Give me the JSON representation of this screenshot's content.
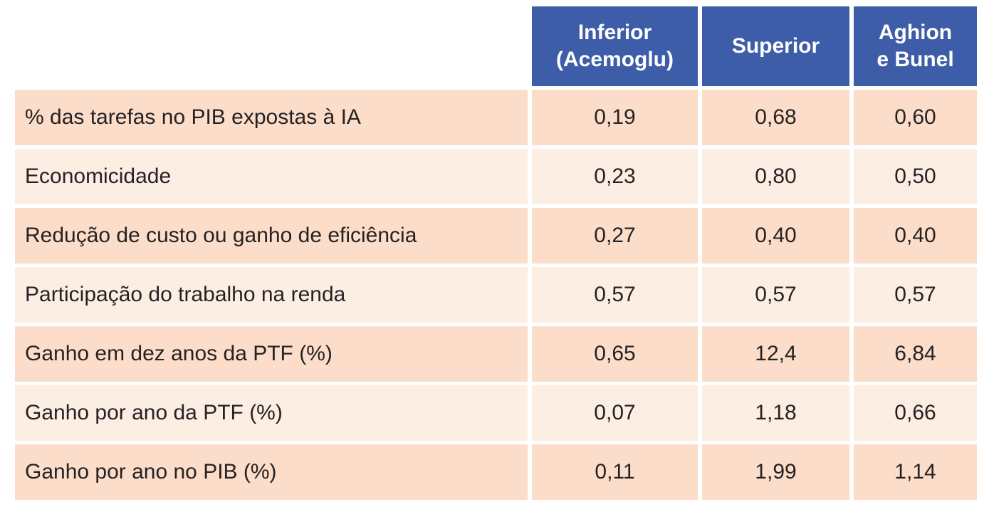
{
  "colors": {
    "header_bg": "#3e5da9",
    "header_text": "#ffffff",
    "row_dark": "#fbddc9",
    "row_light": "#fdeee4",
    "body_text": "#262223",
    "page_bg": "#ffffff"
  },
  "table": {
    "headers": [
      {
        "label": "Inferior\n(Acemoglu)"
      },
      {
        "label": "Superior"
      },
      {
        "label": "Aghion\ne Bunel"
      }
    ],
    "rows": [
      {
        "label": "% das tarefas no PIB expostas à IA",
        "values": [
          "0,19",
          "0,68",
          "0,60"
        ]
      },
      {
        "label": "Economicidade",
        "values": [
          "0,23",
          "0,80",
          "0,50"
        ]
      },
      {
        "label": "Redução de custo ou ganho de eficiência",
        "values": [
          "0,27",
          "0,40",
          "0,40"
        ]
      },
      {
        "label": "Participação do trabalho na renda",
        "values": [
          "0,57",
          "0,57",
          "0,57"
        ]
      },
      {
        "label": "Ganho em dez anos da PTF (%)",
        "values": [
          "0,65",
          "12,4",
          "6,84"
        ]
      },
      {
        "label": "Ganho por ano da PTF (%)",
        "values": [
          "0,07",
          "1,18",
          "0,66"
        ]
      },
      {
        "label": "Ganho por ano no PIB (%)",
        "values": [
          "0,11",
          "1,99",
          "1,14"
        ]
      }
    ]
  },
  "chart_data": {
    "type": "table",
    "title": "",
    "column_headers": [
      "Inferior (Acemoglu)",
      "Superior",
      "Aghion e Bunel"
    ],
    "row_labels": [
      "% das tarefas no PIB expostas à IA",
      "Economicidade",
      "Redução de custo ou ganho de eficiência",
      "Participação do trabalho na renda",
      "Ganho em dez anos da PTF (%)",
      "Ganho por ano da PTF (%)",
      "Ganho por ano no PIB (%)"
    ],
    "series": [
      {
        "name": "Inferior (Acemoglu)",
        "values": [
          0.19,
          0.23,
          0.27,
          0.57,
          0.65,
          0.07,
          0.11
        ]
      },
      {
        "name": "Superior",
        "values": [
          0.68,
          0.8,
          0.4,
          0.57,
          12.4,
          1.18,
          1.99
        ]
      },
      {
        "name": "Aghion e Bunel",
        "values": [
          0.6,
          0.5,
          0.4,
          0.57,
          6.84,
          0.66,
          1.14
        ]
      }
    ],
    "decimal_separator": ",",
    "layout": {
      "striped_rows": true,
      "header_position": "top",
      "first_column": "row labels"
    }
  }
}
